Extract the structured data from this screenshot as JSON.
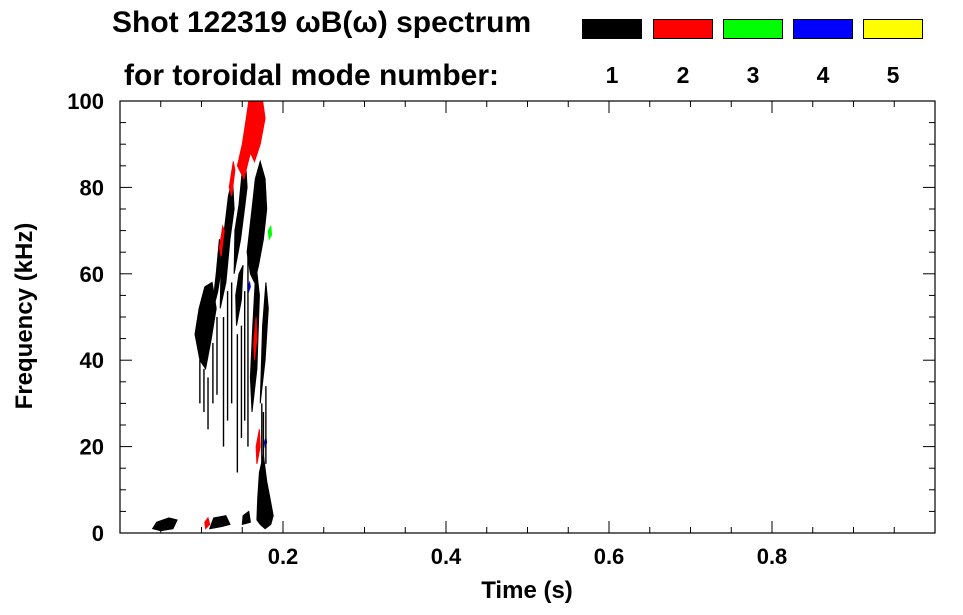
{
  "chart_data": {
    "type": "heatmap",
    "title": "Shot 122319 ωB(ω) spectrum",
    "subtitle": "for toroidal mode number:",
    "xlabel": "Time (s)",
    "ylabel": "Frequency (kHz)",
    "xlim": [
      0,
      1
    ],
    "ylim": [
      0,
      100
    ],
    "x_ticks": [
      0.2,
      0.4,
      0.6,
      0.8
    ],
    "y_ticks": [
      0,
      20,
      40,
      60,
      80,
      100
    ],
    "x_minor_step": 0.05,
    "y_minor_step": 5,
    "grid": false,
    "legend": [
      {
        "label": "1",
        "color": "#000000"
      },
      {
        "label": "2",
        "color": "#ff0000"
      },
      {
        "label": "3",
        "color": "#00ff00"
      },
      {
        "label": "4",
        "color": "#0000ff"
      },
      {
        "label": "5",
        "color": "#ffff00"
      }
    ],
    "regions": [
      {
        "mode": "1",
        "points": [
          [
            0.092,
            46
          ],
          [
            0.098,
            40
          ],
          [
            0.105,
            38
          ],
          [
            0.112,
            45
          ],
          [
            0.118,
            52
          ],
          [
            0.113,
            58
          ],
          [
            0.104,
            57
          ],
          [
            0.097,
            52
          ]
        ]
      },
      {
        "mode": "1",
        "points": [
          [
            0.112,
            50
          ],
          [
            0.12,
            56
          ],
          [
            0.125,
            62
          ],
          [
            0.122,
            68
          ],
          [
            0.118,
            60
          ]
        ]
      },
      {
        "mode": "1",
        "points": [
          [
            0.123,
            52
          ],
          [
            0.13,
            58
          ],
          [
            0.135,
            68
          ],
          [
            0.14,
            75
          ],
          [
            0.138,
            82
          ],
          [
            0.133,
            78
          ],
          [
            0.128,
            70
          ],
          [
            0.124,
            62
          ]
        ]
      },
      {
        "mode": "1",
        "points": [
          [
            0.14,
            60
          ],
          [
            0.148,
            68
          ],
          [
            0.152,
            74
          ],
          [
            0.156,
            80
          ],
          [
            0.154,
            86
          ],
          [
            0.15,
            84
          ],
          [
            0.146,
            76
          ],
          [
            0.141,
            70
          ]
        ]
      },
      {
        "mode": "1",
        "points": [
          [
            0.156,
            65
          ],
          [
            0.162,
            75
          ],
          [
            0.166,
            82
          ],
          [
            0.172,
            86
          ],
          [
            0.178,
            82
          ],
          [
            0.18,
            75
          ],
          [
            0.176,
            68
          ],
          [
            0.17,
            62
          ],
          [
            0.165,
            58
          ],
          [
            0.16,
            60
          ]
        ]
      },
      {
        "mode": "1",
        "points": [
          [
            0.143,
            48
          ],
          [
            0.149,
            54
          ],
          [
            0.151,
            62
          ],
          [
            0.146,
            60
          ],
          [
            0.142,
            55
          ]
        ]
      },
      {
        "mode": "1",
        "points": [
          [
            0.162,
            28
          ],
          [
            0.168,
            38
          ],
          [
            0.171,
            55
          ],
          [
            0.167,
            62
          ],
          [
            0.163,
            48
          ],
          [
            0.16,
            36
          ]
        ]
      },
      {
        "mode": "1",
        "points": [
          [
            0.172,
            30
          ],
          [
            0.178,
            40
          ],
          [
            0.182,
            52
          ],
          [
            0.179,
            58
          ],
          [
            0.175,
            48
          ]
        ]
      },
      {
        "mode": "1",
        "points": [
          [
            0.168,
            3
          ],
          [
            0.172,
            2
          ],
          [
            0.178,
            1
          ],
          [
            0.185,
            2
          ],
          [
            0.188,
            4
          ],
          [
            0.184,
            8
          ],
          [
            0.18,
            12
          ],
          [
            0.176,
            18
          ],
          [
            0.171,
            14
          ],
          [
            0.169,
            8
          ]
        ]
      },
      {
        "mode": "1",
        "points": [
          [
            0.04,
            1
          ],
          [
            0.05,
            0.5
          ],
          [
            0.065,
            1
          ],
          [
            0.07,
            3
          ],
          [
            0.06,
            3.5
          ],
          [
            0.045,
            2.5
          ]
        ]
      },
      {
        "mode": "1",
        "points": [
          [
            0.11,
            1
          ],
          [
            0.125,
            1.5
          ],
          [
            0.135,
            2
          ],
          [
            0.13,
            4
          ],
          [
            0.115,
            3.5
          ]
        ]
      },
      {
        "mode": "1",
        "points": [
          [
            0.15,
            2
          ],
          [
            0.16,
            2.5
          ],
          [
            0.158,
            5
          ],
          [
            0.151,
            4
          ]
        ]
      },
      {
        "mode": "2",
        "points": [
          [
            0.144,
            85
          ],
          [
            0.15,
            90
          ],
          [
            0.155,
            96
          ],
          [
            0.158,
            100
          ],
          [
            0.165,
            100
          ],
          [
            0.17,
            100
          ],
          [
            0.175,
            100
          ],
          [
            0.178,
            96
          ],
          [
            0.172,
            90
          ],
          [
            0.165,
            86
          ],
          [
            0.16,
            88
          ],
          [
            0.152,
            82
          ]
        ]
      },
      {
        "mode": "2",
        "points": [
          [
            0.122,
            66
          ],
          [
            0.126,
            71
          ],
          [
            0.128,
            70
          ],
          [
            0.124,
            64
          ]
        ]
      },
      {
        "mode": "2",
        "points": [
          [
            0.134,
            80
          ],
          [
            0.139,
            86
          ],
          [
            0.141,
            84
          ],
          [
            0.137,
            78
          ]
        ]
      },
      {
        "mode": "2",
        "points": [
          [
            0.165,
            40
          ],
          [
            0.168,
            45
          ],
          [
            0.167,
            50
          ],
          [
            0.164,
            44
          ]
        ]
      },
      {
        "mode": "2",
        "points": [
          [
            0.168,
            16
          ],
          [
            0.172,
            20
          ],
          [
            0.171,
            24
          ],
          [
            0.167,
            20
          ]
        ]
      },
      {
        "mode": "2",
        "points": [
          [
            0.105,
            1
          ],
          [
            0.11,
            2
          ],
          [
            0.108,
            3.5
          ],
          [
            0.104,
            2.5
          ]
        ]
      },
      {
        "mode": "3",
        "points": [
          [
            0.183,
            68
          ],
          [
            0.186,
            69
          ],
          [
            0.185,
            71
          ],
          [
            0.182,
            70
          ]
        ]
      },
      {
        "mode": "4",
        "points": [
          [
            0.158,
            56
          ],
          [
            0.16,
            57
          ],
          [
            0.159,
            58
          ],
          [
            0.157,
            57
          ]
        ]
      },
      {
        "mode": "4",
        "points": [
          [
            0.178,
            20
          ],
          [
            0.18,
            21
          ],
          [
            0.179,
            22
          ],
          [
            0.177,
            21
          ]
        ]
      }
    ],
    "streaks": [
      {
        "mode": "1",
        "x": 0.098,
        "y": [
          30,
          40
        ]
      },
      {
        "mode": "1",
        "x": 0.103,
        "y": [
          28,
          38
        ]
      },
      {
        "mode": "1",
        "x": 0.108,
        "y": [
          24,
          36
        ]
      },
      {
        "mode": "1",
        "x": 0.114,
        "y": [
          30,
          44
        ]
      },
      {
        "mode": "1",
        "x": 0.119,
        "y": [
          32,
          50
        ]
      },
      {
        "mode": "1",
        "x": 0.127,
        "y": [
          20,
          50
        ]
      },
      {
        "mode": "1",
        "x": 0.132,
        "y": [
          26,
          56
        ]
      },
      {
        "mode": "1",
        "x": 0.137,
        "y": [
          30,
          58
        ]
      },
      {
        "mode": "1",
        "x": 0.144,
        "y": [
          14,
          46
        ]
      },
      {
        "mode": "1",
        "x": 0.149,
        "y": [
          22,
          48
        ]
      },
      {
        "mode": "1",
        "x": 0.153,
        "y": [
          26,
          56
        ]
      },
      {
        "mode": "1",
        "x": 0.157,
        "y": [
          20,
          64
        ]
      },
      {
        "mode": "1",
        "x": 0.174,
        "y": [
          14,
          30
        ]
      },
      {
        "mode": "1",
        "x": 0.176,
        "y": [
          12,
          28
        ]
      },
      {
        "mode": "1",
        "x": 0.179,
        "y": [
          16,
          34
        ]
      }
    ]
  }
}
